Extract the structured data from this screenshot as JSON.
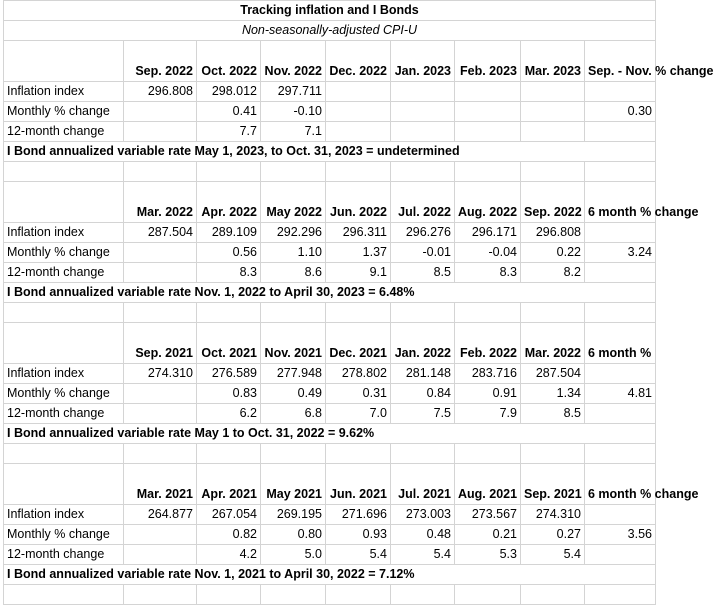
{
  "title": "Tracking inflation and I Bonds",
  "subtitle": "Non-seasonally-adjusted CPI-U",
  "row_labels": {
    "index": "Inflation index",
    "monthly": "Monthly % change",
    "twelve": "12-month change"
  },
  "blocks": [
    {
      "months": [
        "Sep. 2022",
        "Oct. 2022",
        "Nov. 2022",
        "Dec. 2022",
        "Jan. 2023",
        "Feb. 2023",
        "Mar. 2023"
      ],
      "change_label": "Sep. - Nov. % change",
      "index": [
        "296.808",
        "298.012",
        "297.711",
        "",
        "",
        "",
        ""
      ],
      "monthly": [
        "",
        "0.41",
        "-0.10",
        "",
        "",
        "",
        ""
      ],
      "twelve": [
        "",
        "7.7",
        "7.1",
        "",
        "",
        "",
        ""
      ],
      "change_value": "0.30",
      "rate": "I Bond annualized variable rate May 1, 2023,  to Oct. 31, 2023 = undetermined"
    },
    {
      "months": [
        "Mar. 2022",
        "Apr. 2022",
        "May 2022",
        "Jun. 2022",
        "Jul. 2022",
        "Aug. 2022",
        "Sep. 2022"
      ],
      "change_label": "6 month % change",
      "index": [
        "287.504",
        "289.109",
        "292.296",
        "296.311",
        "296.276",
        "296.171",
        "296.808"
      ],
      "monthly": [
        "",
        "0.56",
        "1.10",
        "1.37",
        "-0.01",
        "-0.04",
        "0.22"
      ],
      "twelve": [
        "",
        "8.3",
        "8.6",
        "9.1",
        "8.5",
        "8.3",
        "8.2"
      ],
      "change_value": "3.24",
      "rate": "I Bond annualized variable rate Nov. 1, 2022 to April 30, 2023 = 6.48%"
    },
    {
      "months": [
        "Sep. 2021",
        "Oct. 2021",
        "Nov. 2021",
        "Dec. 2021",
        "Jan. 2022",
        "Feb. 2022",
        "Mar. 2022"
      ],
      "change_label": "6 month %",
      "index": [
        "274.310",
        "276.589",
        "277.948",
        "278.802",
        "281.148",
        "283.716",
        "287.504"
      ],
      "monthly": [
        "",
        "0.83",
        "0.49",
        "0.31",
        "0.84",
        "0.91",
        "1.34"
      ],
      "twelve": [
        "",
        "6.2",
        "6.8",
        "7.0",
        "7.5",
        "7.9",
        "8.5"
      ],
      "change_value": "4.81",
      "rate": "I Bond annualized variable rate May 1 to Oct. 31, 2022 = 9.62%"
    },
    {
      "months": [
        "Mar. 2021",
        "Apr. 2021",
        "May 2021",
        "Jun. 2021",
        "Jul. 2021",
        "Aug. 2021",
        "Sep. 2021"
      ],
      "change_label": "6 month % change",
      "index": [
        "264.877",
        "267.054",
        "269.195",
        "271.696",
        "273.003",
        "273.567",
        "274.310"
      ],
      "monthly": [
        "",
        "0.82",
        "0.80",
        "0.93",
        "0.48",
        "0.21",
        "0.27"
      ],
      "twelve": [
        "",
        "4.2",
        "5.0",
        "5.4",
        "5.4",
        "5.3",
        "5.4"
      ],
      "change_value": "3.56",
      "rate": "I Bond annualized variable rate Nov. 1, 2021  to April 30, 2022 = 7.12%"
    }
  ]
}
